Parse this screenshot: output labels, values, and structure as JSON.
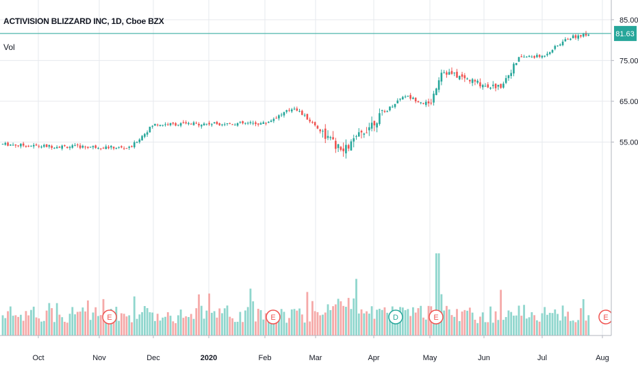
{
  "header": {
    "symbol_title": "ACTIVISION BLIZZARD INC, 1D, Cboe BZX",
    "volume_label": "Vol"
  },
  "colors": {
    "up": "#26a69a",
    "down": "#ef5350",
    "up_volume": "#8fd6cd",
    "down_volume": "#f5a9a8",
    "price_line": "#4db6ac",
    "grid": "#e6e9ee",
    "axis_text": "#131722"
  },
  "chart_data": {
    "type": "candlestick",
    "title": "ACTIVISION BLIZZARD INC, 1D, Cboe BZX",
    "ylim": [
      48,
      86
    ],
    "y_ticks": [
      "85.00",
      "75.00",
      "65.00",
      "55.00"
    ],
    "x_ticks": [
      "Oct",
      "Nov",
      "Dec",
      "2020",
      "Feb",
      "Mar",
      "Apr",
      "May",
      "Jun",
      "Jul",
      "Aug"
    ],
    "last_price": "81.63",
    "grid": true,
    "event_markers": [
      {
        "label": "E",
        "month": "Nov",
        "kind": "earnings"
      },
      {
        "label": "E",
        "month": "Feb",
        "kind": "earnings"
      },
      {
        "label": "D",
        "month": "Apr",
        "kind": "dividend"
      },
      {
        "label": "E",
        "month": "May",
        "kind": "earnings"
      },
      {
        "label": "E",
        "month": "Aug",
        "kind": "earnings"
      }
    ],
    "monthly_closes": [
      {
        "month": "Sep",
        "close": 54.5
      },
      {
        "month": "Oct",
        "close": 54.0
      },
      {
        "month": "Nov",
        "close": 53.8
      },
      {
        "month": "Dec",
        "close": 59.3
      },
      {
        "month": "Jan",
        "close": 59.5
      },
      {
        "month": "Feb",
        "close": 63.5
      },
      {
        "month": "Mar",
        "close": 59.0
      },
      {
        "month": "Apr",
        "close": 66.5
      },
      {
        "month": "May",
        "close": 72.5
      },
      {
        "month": "Jun",
        "close": 75.9
      },
      {
        "month": "Jul",
        "close": 81.63
      }
    ]
  }
}
